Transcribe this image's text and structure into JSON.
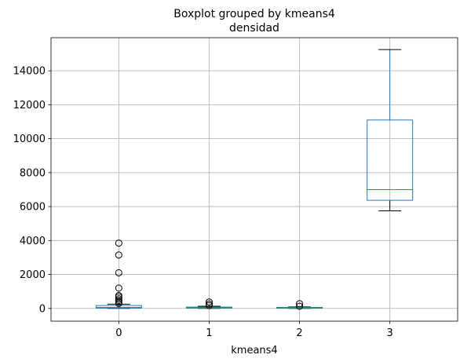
{
  "chart_data": {
    "type": "boxplot",
    "suptitle": "Boxplot grouped by kmeans4",
    "title": "densidad",
    "xlabel": "kmeans4",
    "ylabel": "",
    "categories": [
      "0",
      "1",
      "2",
      "3"
    ],
    "yticks": [
      0,
      2000,
      4000,
      6000,
      8000,
      10000,
      12000,
      14000
    ],
    "ylim": [
      -750,
      15950
    ],
    "grid": true,
    "box_color": "#1f77b4",
    "median_color": "#2ca02c",
    "whisker_color": "#000000",
    "boxes": [
      {
        "category": "0",
        "whislo": 0,
        "q1": 20,
        "med": 60,
        "q3": 170,
        "whishi": 250,
        "fliers": [
          290,
          380,
          470,
          560,
          680,
          760,
          1200,
          2100,
          3150,
          3850
        ]
      },
      {
        "category": "1",
        "whislo": 0,
        "q1": 15,
        "med": 40,
        "q3": 80,
        "whishi": 130,
        "fliers": [
          170,
          260,
          380
        ]
      },
      {
        "category": "2",
        "whislo": 0,
        "q1": 10,
        "med": 30,
        "q3": 60,
        "whishi": 90,
        "fliers": [
          130,
          280
        ]
      },
      {
        "category": "3",
        "whislo": 5750,
        "q1": 6370,
        "med": 7000,
        "q3": 11100,
        "whishi": 15250,
        "fliers": []
      }
    ]
  }
}
